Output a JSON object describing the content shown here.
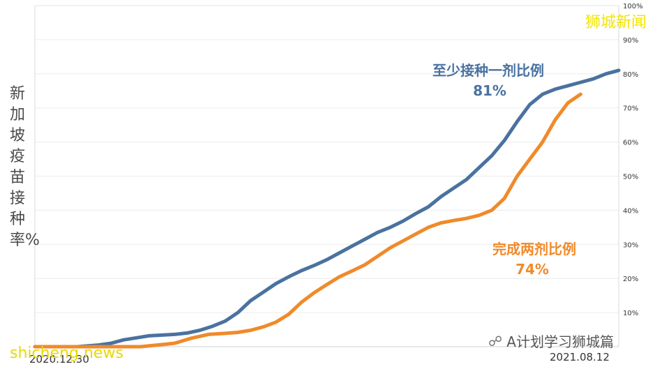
{
  "chart_data": {
    "type": "line",
    "ylabel": "新加坡疫苗接种率%",
    "x_start_label": "2020.12.30",
    "x_end_label": "2021.08.12",
    "ylim": [
      0,
      100
    ],
    "y_ticks": [
      "10%",
      "20%",
      "30%",
      "40%",
      "50%",
      "60%",
      "70%",
      "80%",
      "90%",
      "100%"
    ],
    "y_axis_side": "right",
    "grid": true,
    "series": [
      {
        "name": "至少接种一剂比例",
        "final_label": "81%",
        "color": "#4a72a0",
        "points": [
          [
            0,
            0
          ],
          [
            10,
            0
          ],
          [
            15,
            0.5
          ],
          [
            18,
            1
          ],
          [
            21,
            2
          ],
          [
            24,
            2.6
          ],
          [
            27,
            3.2
          ],
          [
            30,
            3.4
          ],
          [
            33,
            3.6
          ],
          [
            36,
            4
          ],
          [
            39,
            4.8
          ],
          [
            42,
            6
          ],
          [
            45,
            7.5
          ],
          [
            48,
            10
          ],
          [
            51,
            13.5
          ],
          [
            54,
            16
          ],
          [
            57,
            18.5
          ],
          [
            60,
            20.5
          ],
          [
            63,
            22.3
          ],
          [
            66,
            23.8
          ],
          [
            69,
            25.5
          ],
          [
            72,
            27.5
          ],
          [
            75,
            29.5
          ],
          [
            78,
            31.5
          ],
          [
            81,
            33.5
          ],
          [
            84,
            35
          ],
          [
            87,
            36.8
          ],
          [
            90,
            39
          ],
          [
            93,
            41
          ],
          [
            96,
            44
          ],
          [
            99,
            46.5
          ],
          [
            102,
            49
          ],
          [
            105,
            52.5
          ],
          [
            108,
            56
          ],
          [
            111,
            60.5
          ],
          [
            114,
            66
          ],
          [
            117,
            71
          ],
          [
            120,
            74
          ],
          [
            123,
            75.5
          ],
          [
            126,
            76.5
          ],
          [
            129,
            77.5
          ],
          [
            132,
            78.5
          ],
          [
            135,
            80
          ],
          [
            138,
            81
          ]
        ]
      },
      {
        "name": "完成两剂比例",
        "final_label": "74%",
        "color": "#f08a2a",
        "points": [
          [
            0,
            0
          ],
          [
            25,
            0
          ],
          [
            29,
            0.5
          ],
          [
            33,
            1
          ],
          [
            37,
            2.5
          ],
          [
            41,
            3.6
          ],
          [
            45,
            3.9
          ],
          [
            48,
            4.2
          ],
          [
            51,
            4.8
          ],
          [
            54,
            5.8
          ],
          [
            57,
            7.2
          ],
          [
            60,
            9.5
          ],
          [
            63,
            13
          ],
          [
            66,
            15.8
          ],
          [
            69,
            18.2
          ],
          [
            72,
            20.5
          ],
          [
            75,
            22.2
          ],
          [
            78,
            24
          ],
          [
            81,
            26.5
          ],
          [
            84,
            29
          ],
          [
            87,
            31
          ],
          [
            90,
            33
          ],
          [
            93,
            35
          ],
          [
            96,
            36.3
          ],
          [
            99,
            37
          ],
          [
            102,
            37.6
          ],
          [
            105,
            38.5
          ],
          [
            108,
            40
          ],
          [
            111,
            43.5
          ],
          [
            114,
            50
          ],
          [
            117,
            55
          ],
          [
            120,
            60
          ],
          [
            123,
            66.5
          ],
          [
            126,
            71.5
          ],
          [
            129,
            74
          ]
        ]
      }
    ]
  },
  "watermark": {
    "brand": "狮城新闻",
    "site": "shicheng.news",
    "wechat": "A计划学习狮城篇",
    "wechat_icon": "wechat-icon"
  }
}
